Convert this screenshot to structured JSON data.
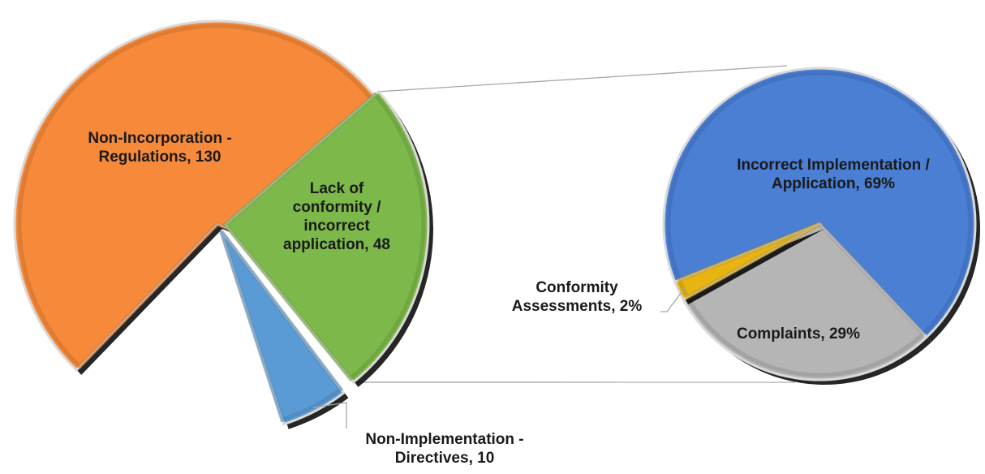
{
  "chart_data": [
    {
      "type": "pie",
      "title": "",
      "slices": [
        {
          "label_lines": [
            "Non-Incorporation -",
            "Regulations, 130"
          ],
          "value": 130,
          "color": "#F68A3A"
        },
        {
          "label_lines": [
            "Lack of",
            "conformity /",
            "incorrect",
            "application, 48"
          ],
          "value": 48,
          "color": "#7DB94A"
        },
        {
          "label_lines": [
            "Non-Implementation -",
            "Directives, 10"
          ],
          "value": 10,
          "color": "#5B9BD5"
        }
      ]
    },
    {
      "type": "pie",
      "title": "",
      "detail_of": "Lack of conformity / incorrect application",
      "slices": [
        {
          "label_lines": [
            "Incorrect Implementation /",
            "Application, 69%"
          ],
          "value": 69,
          "unit": "%",
          "color": "#4A7FD4"
        },
        {
          "label_lines": [
            "Complaints, 29%"
          ],
          "value": 29,
          "unit": "%",
          "color": "#B5B5B5"
        },
        {
          "label_lines": [
            "Conformity",
            "Assessments, 2%"
          ],
          "value": 2,
          "unit": "%",
          "color": "#E8B410"
        }
      ]
    }
  ]
}
